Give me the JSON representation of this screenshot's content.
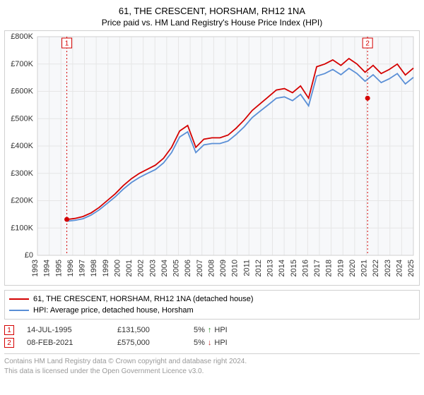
{
  "title_line_1": "61, THE CRESCENT, HORSHAM, RH12 1NA",
  "title_line_2": "Price paid vs. HM Land Registry's House Price Index (HPI)",
  "chart": {
    "type": "line",
    "background_color": "#f7f8fa",
    "border_color": "#d0d0d0",
    "grid_color": "#e6e6e6",
    "title_fontsize": 13,
    "subtitle_fontsize": 12,
    "axis_fontsize": 11,
    "y": {
      "min": 0,
      "max": 800,
      "step": 100,
      "labels": [
        "£0",
        "£100K",
        "£200K",
        "£300K",
        "£400K",
        "£500K",
        "£600K",
        "£700K",
        "£800K"
      ]
    },
    "x": {
      "min": 1993,
      "max": 2025,
      "step": 1,
      "labels": [
        "1993",
        "1994",
        "1995",
        "1996",
        "1997",
        "1998",
        "1999",
        "2000",
        "2001",
        "2002",
        "2003",
        "2004",
        "2005",
        "2006",
        "2007",
        "2008",
        "2009",
        "2010",
        "2011",
        "2012",
        "2013",
        "2014",
        "2015",
        "2016",
        "2017",
        "2018",
        "2019",
        "2020",
        "2021",
        "2022",
        "2023",
        "2024",
        "2025"
      ]
    },
    "series": [
      {
        "name": "61, THE CRESCENT, HORSHAM, RH12 1NA (detached house)",
        "color": "#d40000",
        "line_width": 1.8,
        "start_year": 1995.5,
        "end_year": 2025,
        "values": [
          131,
          135,
          142,
          155,
          175,
          200,
          225,
          255,
          280,
          300,
          315,
          330,
          355,
          395,
          455,
          475,
          395,
          425,
          430,
          430,
          440,
          465,
          495,
          530,
          555,
          580,
          605,
          610,
          595,
          620,
          575,
          690,
          700,
          715,
          695,
          720,
          700,
          670,
          695,
          665,
          680,
          700,
          660,
          685
        ]
      },
      {
        "name": "HPI: Average price, detached house, Horsham",
        "color": "#5a8fd6",
        "line_width": 1.6,
        "start_year": 1995.5,
        "end_year": 2025,
        "values": [
          125,
          128,
          134,
          147,
          166,
          190,
          214,
          242,
          266,
          285,
          300,
          314,
          338,
          376,
          433,
          452,
          376,
          404,
          409,
          409,
          418,
          442,
          470,
          504,
          528,
          551,
          575,
          580,
          566,
          589,
          547,
          656,
          665,
          680,
          661,
          684,
          665,
          637,
          661,
          632,
          646,
          665,
          627,
          651
        ]
      }
    ],
    "markers": [
      {
        "id": "1",
        "year": 1995.5,
        "value": 131.5,
        "color": "#d40000",
        "dash_color": "#d40000"
      },
      {
        "id": "2",
        "year": 2021.1,
        "value": 575,
        "color": "#d40000",
        "dash_color": "#d40000"
      }
    ]
  },
  "legend": {
    "border_color": "#d0d0d0",
    "items": [
      {
        "color": "#d40000",
        "label": "61, THE CRESCENT, HORSHAM, RH12 1NA (detached house)"
      },
      {
        "color": "#5a8fd6",
        "label": "HPI: Average price, detached house, Horsham"
      }
    ]
  },
  "sales": {
    "border_color": "#d0d0d0",
    "rows": [
      {
        "marker": "1",
        "marker_color": "#d40000",
        "date": "14-JUL-1995",
        "price": "£131,500",
        "delta_pct": "5%",
        "delta_dir": "↑",
        "delta_label": "HPI",
        "delta_color": "#2e8b2e"
      },
      {
        "marker": "2",
        "marker_color": "#d40000",
        "date": "08-FEB-2021",
        "price": "£575,000",
        "delta_pct": "5%",
        "delta_dir": "↓",
        "delta_label": "HPI",
        "delta_color": "#c03030"
      }
    ]
  },
  "attribution": {
    "line1": "Contains HM Land Registry data © Crown copyright and database right 2024.",
    "line2": "This data is licensed under the Open Government Licence v3.0."
  }
}
